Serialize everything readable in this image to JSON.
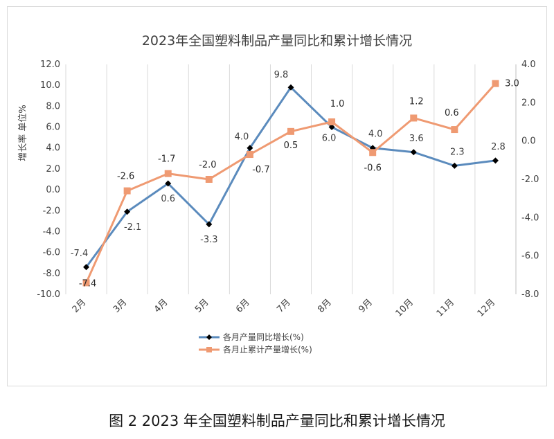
{
  "chart_data": {
    "type": "line",
    "title": "2023年全国塑料制品产量同比和累计增长情况",
    "caption": "图 2 2023 年全国塑料制品产量同比和累计增长情况",
    "ylabel": "增长率 单位%",
    "categories": [
      "2月",
      "3月",
      "4月",
      "5月",
      "6月",
      "7月",
      "8月",
      "9月",
      "10月",
      "11月",
      "12月"
    ],
    "y_left": {
      "min": -10,
      "max": 12,
      "ticks": [
        "12.0",
        "10.0",
        "8.0",
        "6.0",
        "4.0",
        "2.0",
        "0.0",
        "-2.0",
        "-4.0",
        "-6.0",
        "-8.0",
        "-10.0"
      ]
    },
    "y_right": {
      "min": -8,
      "max": 4,
      "ticks": [
        "4.0",
        "2.0",
        "0.0",
        "-2.0",
        "-4.0",
        "-6.0",
        "-8.0"
      ]
    },
    "grid": "vertical",
    "legend_position": "bottom",
    "series": [
      {
        "name": "各月产量同比增长(%)",
        "axis": "left",
        "color": "#5b8bbd",
        "marker": "diamond",
        "marker_color": "#000000",
        "values": [
          -7.4,
          -2.1,
          0.6,
          -3.3,
          4.0,
          9.8,
          6.0,
          4.0,
          3.6,
          2.3,
          2.8
        ],
        "labels": [
          "-7.4",
          "-2.1",
          "0.6",
          "-3.3",
          "4.0",
          "9.8",
          "6.0",
          "4.0",
          "3.6",
          "2.3",
          "2.8"
        ]
      },
      {
        "name": "各月止累计产量增长(%)",
        "axis": "right",
        "color": "#ef9a72",
        "marker": "square",
        "marker_color": "#ef9a72",
        "values": [
          -7.4,
          -2.6,
          -1.7,
          -2.0,
          -0.7,
          0.5,
          1.0,
          -0.6,
          1.2,
          0.6,
          3.0
        ],
        "labels": [
          "-7.4",
          "-2.6",
          "-1.7",
          "-2.0",
          "-0.7",
          "0.5",
          "1.0",
          "-0.6",
          "1.2",
          "0.6",
          "3.0"
        ]
      }
    ]
  }
}
